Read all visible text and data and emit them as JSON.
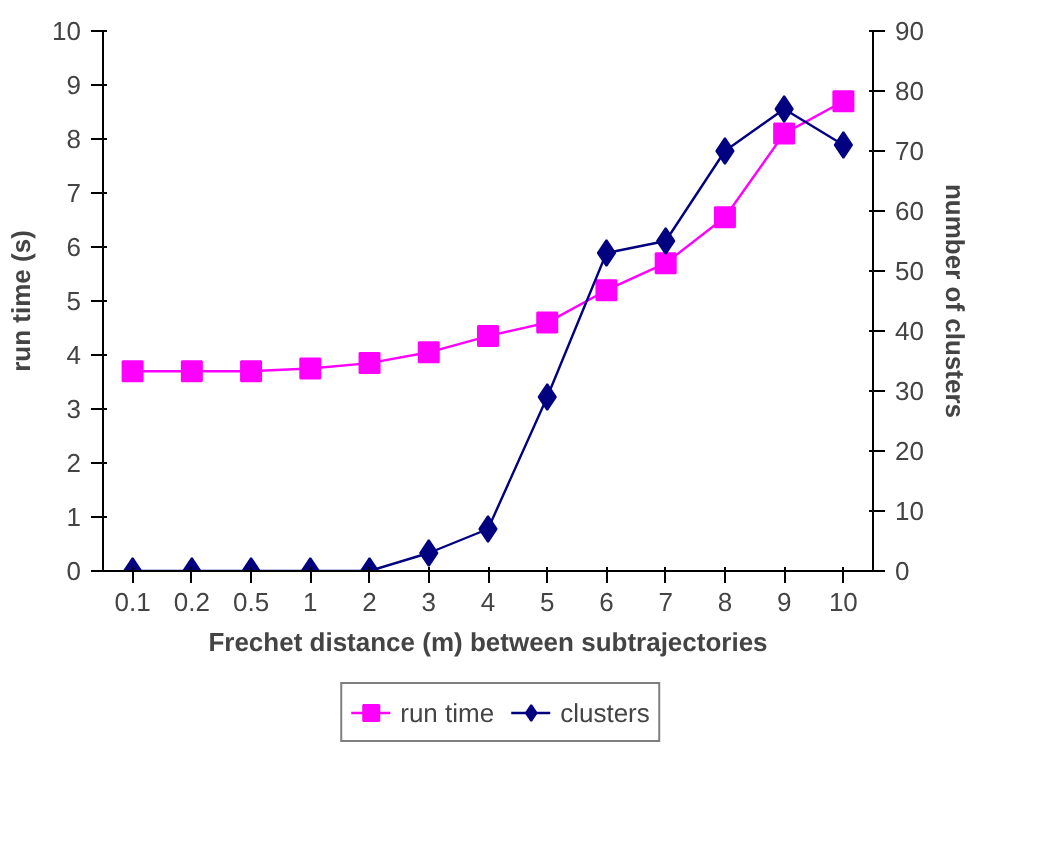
{
  "chart_data": {
    "type": "line",
    "xlabel": "Frechet distance (m) between subtrajectories",
    "ylabel": "run time (s)",
    "y2label": "number of clusters",
    "categories": [
      "0.1",
      "0.2",
      "0.5",
      "1",
      "2",
      "3",
      "4",
      "5",
      "6",
      "7",
      "8",
      "9",
      "10"
    ],
    "series": [
      {
        "name": "run time",
        "color": "#ff00ff",
        "marker": "square",
        "values": [
          3.7,
          3.7,
          3.7,
          3.75,
          3.85,
          4.05,
          4.35,
          4.6,
          5.2,
          5.7,
          6.55,
          8.1,
          8.7
        ]
      },
      {
        "name": "clusters",
        "color": "#000080",
        "marker": "diamond",
        "axis": "y2",
        "values": [
          0,
          0,
          0,
          0,
          0,
          3,
          7,
          29,
          53,
          55,
          70,
          77,
          71
        ]
      }
    ],
    "ylim": [
      0,
      10
    ],
    "yticks": [
      0,
      1,
      2,
      3,
      4,
      5,
      6,
      7,
      8,
      9,
      10
    ],
    "y2lim": [
      0,
      90
    ],
    "y2ticks": [
      0,
      10,
      20,
      30,
      40,
      50,
      60,
      70,
      80,
      90
    ],
    "grid": false,
    "legend": "bottom"
  }
}
